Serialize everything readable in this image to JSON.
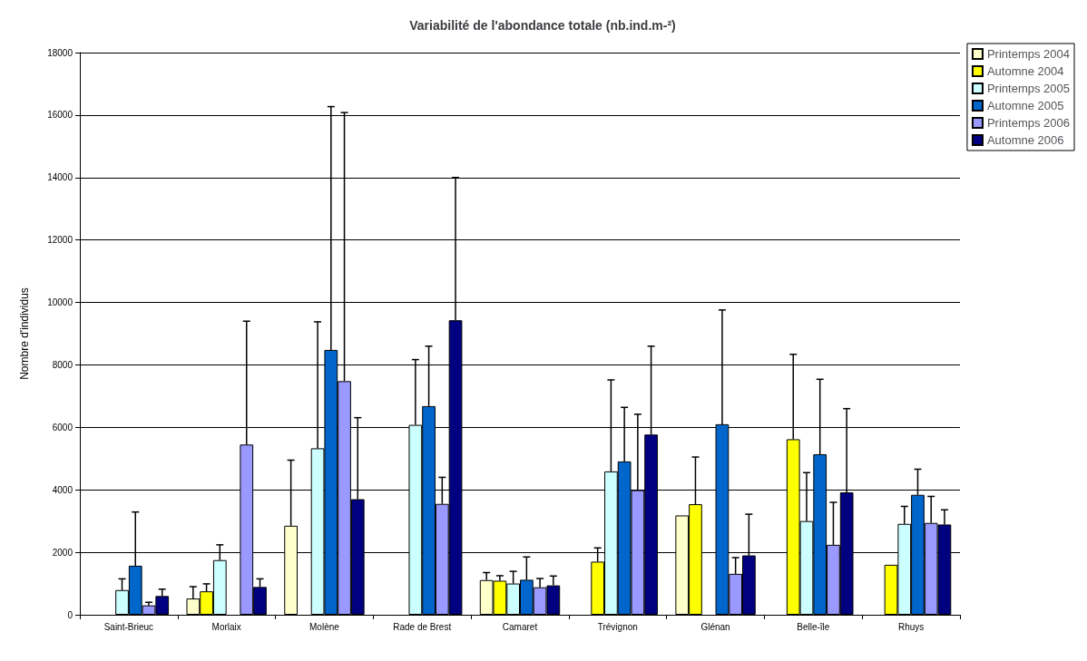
{
  "chart_data": {
    "type": "bar",
    "title": "Variabilité de l'abondance totale (nb.ind.m-²)",
    "ylabel": "Nombre d'individus",
    "categories": [
      "Saint-Brieuc",
      "Morlaix",
      "Molène",
      "Rade de Brest",
      "Camaret",
      "Trévignon",
      "Glénan",
      "Belle-île",
      "Rhuys"
    ],
    "series": [
      {
        "name": "Printemps 2004",
        "color": "#ffffcc",
        "values": [
          0,
          520,
          2850,
          0,
          1110,
          0,
          3180,
          0,
          0
        ],
        "errors": [
          null,
          [
            520,
            900
          ],
          [
            2850,
            4950
          ],
          null,
          [
            1110,
            1350
          ],
          null,
          null,
          null,
          null
        ]
      },
      {
        "name": "Automne 2004",
        "color": "#ffff00",
        "values": [
          0,
          750,
          0,
          0,
          1090,
          1700,
          3540,
          5620,
          1600
        ],
        "errors": [
          null,
          [
            750,
            990
          ],
          null,
          null,
          [
            1090,
            1250
          ],
          [
            1700,
            2140
          ],
          [
            3540,
            5050
          ],
          [
            5620,
            8340
          ],
          null
        ]
      },
      {
        "name": "Printemps 2005",
        "color": "#ccffff",
        "values": [
          790,
          1750,
          5330,
          6080,
          1000,
          4590,
          0,
          3000,
          2910
        ],
        "errors": [
          [
            790,
            1150
          ],
          [
            1750,
            2240
          ],
          [
            5330,
            9380
          ],
          [
            6080,
            8170
          ],
          [
            1000,
            1390
          ],
          [
            4590,
            7520
          ],
          null,
          [
            3000,
            4550
          ],
          [
            2910,
            3470
          ]
        ]
      },
      {
        "name": "Automne 2005",
        "color": "#0066cc",
        "values": [
          1570,
          0,
          8480,
          6680,
          1120,
          4910,
          6100,
          5140,
          3840
        ],
        "errors": [
          [
            1570,
            3290
          ],
          null,
          [
            8480,
            16270
          ],
          [
            6680,
            8600
          ],
          [
            1120,
            1850
          ],
          [
            4910,
            6640
          ],
          [
            6100,
            9760
          ],
          [
            5140,
            7540
          ],
          [
            3840,
            4660
          ]
        ]
      },
      {
        "name": "Printemps 2006",
        "color": "#9999ff",
        "values": [
          300,
          5450,
          7480,
          3550,
          880,
          3990,
          1310,
          2240,
          2940
        ],
        "errors": [
          [
            300,
            400
          ],
          [
            5450,
            9400
          ],
          [
            7480,
            16080
          ],
          [
            3550,
            4400
          ],
          [
            880,
            1160
          ],
          [
            3990,
            6420
          ],
          [
            1310,
            1830
          ],
          [
            2240,
            3600
          ],
          [
            2940,
            3790
          ]
        ]
      },
      {
        "name": "Automne 2006",
        "color": "#000080",
        "values": [
          600,
          890,
          3700,
          9430,
          940,
          5770,
          1900,
          3920,
          2890
        ],
        "errors": [
          [
            600,
            820
          ],
          [
            890,
            1150
          ],
          [
            3700,
            6310
          ],
          [
            9430,
            14000
          ],
          [
            940,
            1240
          ],
          [
            5770,
            8600
          ],
          [
            1900,
            3220
          ],
          [
            3920,
            6600
          ],
          [
            2890,
            3360
          ]
        ]
      }
    ],
    "ylim": [
      0,
      18000
    ],
    "yticks": [
      0,
      2000,
      4000,
      6000,
      8000,
      10000,
      12000,
      14000,
      16000,
      18000
    ],
    "grid": "y",
    "legend": "top right"
  }
}
